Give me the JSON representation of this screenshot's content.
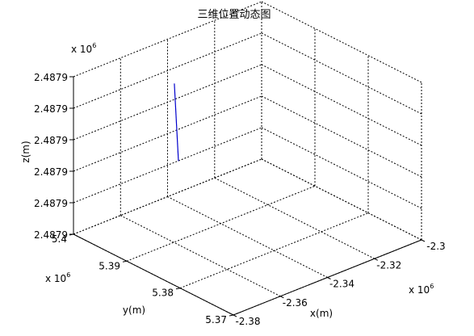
{
  "chart_data": {
    "type": "line3d",
    "title": "三维位置动态图",
    "xlabel": "x(m)",
    "ylabel": "y(m)",
    "zlabel": "z(m)",
    "xlim": [
      -2.38,
      -2.3
    ],
    "ylim": [
      5.37,
      5.4
    ],
    "x_ticks": [
      "-2.38",
      "-2.36",
      "-2.34",
      "-2.32",
      "-2.3"
    ],
    "y_ticks": [
      "5.37",
      "5.38",
      "5.39",
      "5.4"
    ],
    "z_ticks": [
      "2.4879",
      "2.4879",
      "2.4879",
      "2.4879",
      "2.4879",
      "2.4879"
    ],
    "x_exponent": "x 10",
    "y_exponent": "x 10",
    "z_exponent": "x 10",
    "exponent_power": "6",
    "grid": true,
    "series": [
      {
        "color": "#0000cc",
        "x": [
          -2.3437,
          -2.3451
        ],
        "y": [
          5.3971,
          5.3957
        ],
        "z_level": [
          0.79,
          0.33
        ]
      }
    ]
  }
}
